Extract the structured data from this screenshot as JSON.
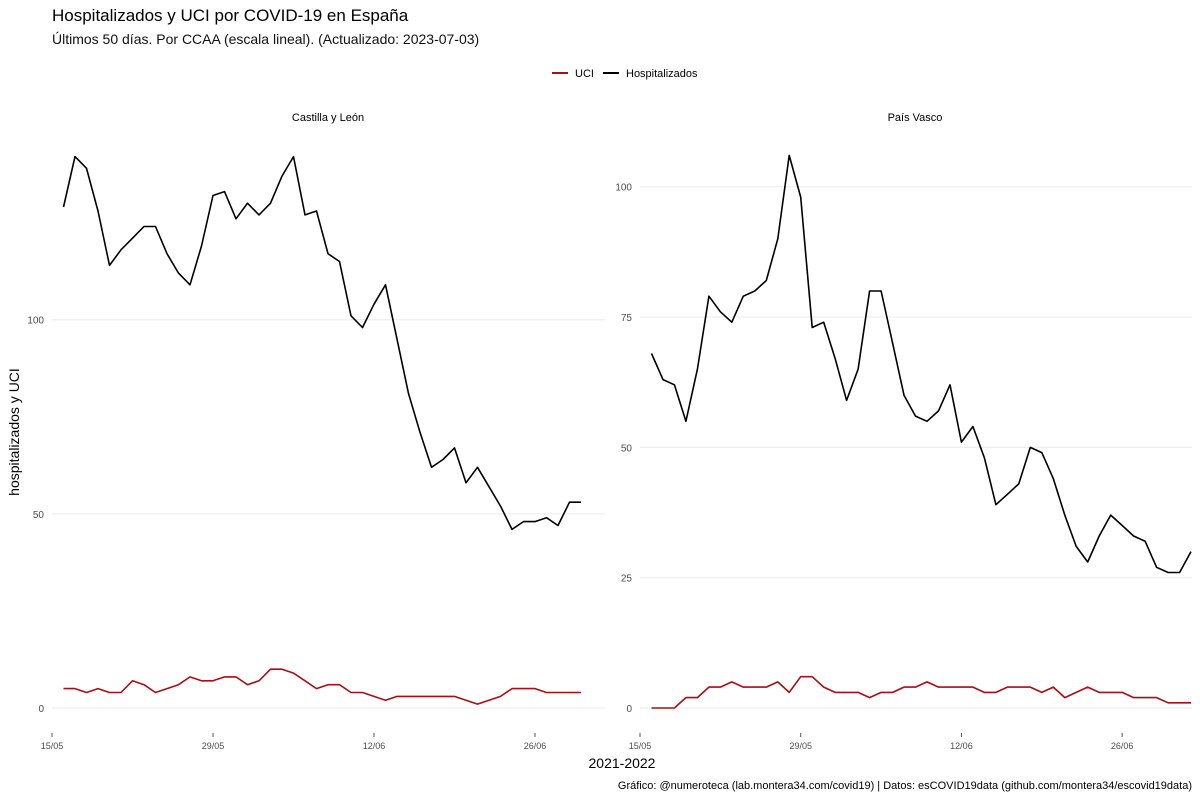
{
  "chart_data": {
    "type": "line",
    "title": "Hospitalizados y UCI por COVID-19 en España",
    "subtitle": "Últimos 50 días. Por CCAA (escala lineal). (Actualizado: 2023-07-03)",
    "xlabel": "2021-2022",
    "ylabel": "hospitalizados y UCI",
    "caption": "Gráfico: @numeroteca (lab.montera34.com/covid19) | Datos: esCOVID19data (github.com/montera34/escovid19data)",
    "legend": {
      "position": "top",
      "entries": [
        {
          "name": "UCI",
          "color": "#a50f15"
        },
        {
          "name": "Hospitalizados",
          "color": "#000000"
        }
      ]
    },
    "grid": true,
    "x_axis": {
      "origin_date": "15/05",
      "tick_labels": [
        "15/05",
        "29/05",
        "12/06",
        "26/06"
      ],
      "tick_days": [
        0,
        14,
        28,
        42
      ],
      "range_days": [
        0,
        48
      ],
      "series_start_day": 1,
      "series_start_date": "2023-05-16"
    },
    "panels": [
      {
        "name": "Castilla y León",
        "ylim": [
          0,
          145
        ],
        "yticks": [
          0,
          50,
          100
        ],
        "series": [
          {
            "name": "Hospitalizados",
            "values": [
              129,
              142,
              139,
              128,
              114,
              118,
              121,
              124,
              124,
              117,
              112,
              109,
              119,
              132,
              133,
              126,
              130,
              127,
              130,
              137,
              142,
              127,
              128,
              117,
              115,
              101,
              98,
              104,
              109,
              95,
              81,
              71,
              62,
              64,
              67,
              58,
              62,
              57,
              52,
              46,
              48,
              48,
              49,
              47,
              53,
              53
            ]
          },
          {
            "name": "UCI",
            "values": [
              5,
              5,
              4,
              5,
              4,
              4,
              7,
              6,
              4,
              5,
              6,
              8,
              7,
              7,
              8,
              8,
              6,
              7,
              10,
              10,
              9,
              7,
              5,
              6,
              6,
              4,
              4,
              3,
              2,
              3,
              3,
              3,
              3,
              3,
              3,
              2,
              1,
              2,
              3,
              5,
              5,
              5,
              4,
              4,
              4,
              4
            ]
          }
        ]
      },
      {
        "name": "País Vasco",
        "ylim": [
          0,
          108
        ],
        "yticks": [
          0,
          25,
          50,
          75,
          100
        ],
        "series": [
          {
            "name": "Hospitalizados",
            "values": [
              68,
              63,
              62,
              55,
              65,
              79,
              76,
              74,
              79,
              80,
              82,
              90,
              106,
              98,
              73,
              74,
              67,
              59,
              65,
              80,
              80,
              70,
              60,
              56,
              55,
              57,
              62,
              51,
              54,
              48,
              39,
              41,
              43,
              50,
              49,
              44,
              37,
              31,
              28,
              33,
              37,
              35,
              33,
              32,
              27,
              26,
              26,
              30
            ]
          },
          {
            "name": "UCI",
            "values": [
              0,
              0,
              0,
              2,
              2,
              4,
              4,
              5,
              4,
              4,
              4,
              5,
              3,
              6,
              6,
              4,
              3,
              3,
              3,
              2,
              3,
              3,
              4,
              4,
              5,
              4,
              4,
              4,
              4,
              3,
              3,
              4,
              4,
              4,
              3,
              4,
              2,
              3,
              4,
              3,
              3,
              3,
              2,
              2,
              2,
              1,
              1,
              1
            ]
          }
        ]
      }
    ]
  }
}
